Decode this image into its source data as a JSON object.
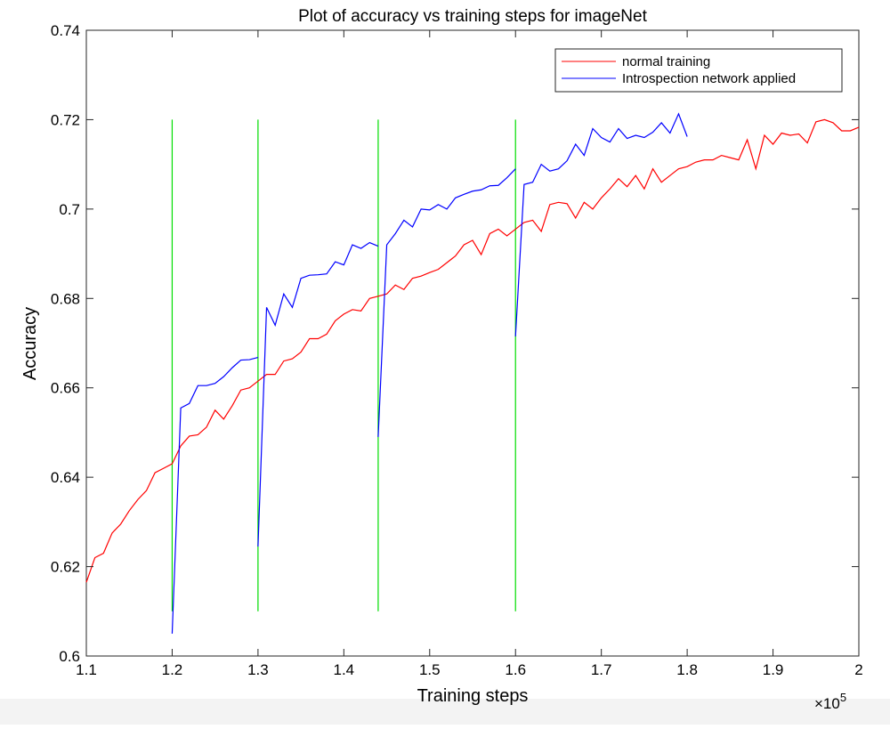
{
  "chart_data": {
    "type": "line",
    "title": "Plot of accuracy vs training steps for imageNet",
    "xlabel": "Training steps",
    "ylabel": "Accuracy",
    "x_multiplier_label": "×10",
    "x_multiplier_exponent": "5",
    "xlim": [
      1.1,
      2.0
    ],
    "ylim": [
      0.6,
      0.74
    ],
    "xticks": [
      1.1,
      1.2,
      1.3,
      1.4,
      1.5,
      1.6,
      1.7,
      1.8,
      1.9,
      2.0
    ],
    "xtick_labels": [
      "1.1",
      "1.2",
      "1.3",
      "1.4",
      "1.5",
      "1.6",
      "1.7",
      "1.8",
      "1.9",
      "2"
    ],
    "yticks": [
      0.6,
      0.62,
      0.64,
      0.66,
      0.68,
      0.7,
      0.72,
      0.74
    ],
    "ytick_labels": [
      "0.6",
      "0.62",
      "0.64",
      "0.66",
      "0.68",
      "0.7",
      "0.72",
      "0.74"
    ],
    "grid": false,
    "legend_position": "top-right",
    "series": [
      {
        "name": "normal training",
        "color": "#ff0000",
        "x": [
          1.1,
          1.11,
          1.12,
          1.13,
          1.14,
          1.15,
          1.16,
          1.17,
          1.18,
          1.19,
          1.2,
          1.21,
          1.22,
          1.23,
          1.24,
          1.25,
          1.26,
          1.27,
          1.28,
          1.29,
          1.3,
          1.31,
          1.32,
          1.33,
          1.34,
          1.35,
          1.36,
          1.37,
          1.38,
          1.39,
          1.4,
          1.41,
          1.42,
          1.43,
          1.44,
          1.45,
          1.46,
          1.47,
          1.48,
          1.49,
          1.5,
          1.51,
          1.52,
          1.53,
          1.54,
          1.55,
          1.56,
          1.57,
          1.58,
          1.59,
          1.6,
          1.61,
          1.62,
          1.63,
          1.64,
          1.65,
          1.66,
          1.67,
          1.68,
          1.69,
          1.7,
          1.71,
          1.72,
          1.73,
          1.74,
          1.75,
          1.76,
          1.77,
          1.78,
          1.79,
          1.8,
          1.81,
          1.82,
          1.83,
          1.84,
          1.85,
          1.86,
          1.87,
          1.88,
          1.89,
          1.9,
          1.91,
          1.92,
          1.93,
          1.94,
          1.95,
          1.96,
          1.97,
          1.98,
          1.99,
          2.0
        ],
        "y": [
          0.6165,
          0.622,
          0.623,
          0.6275,
          0.6295,
          0.6325,
          0.635,
          0.637,
          0.641,
          0.642,
          0.643,
          0.647,
          0.6492,
          0.6495,
          0.6512,
          0.655,
          0.653,
          0.656,
          0.6595,
          0.66,
          0.6615,
          0.663,
          0.663,
          0.666,
          0.6665,
          0.668,
          0.671,
          0.671,
          0.672,
          0.675,
          0.6765,
          0.6775,
          0.6772,
          0.68,
          0.6805,
          0.681,
          0.683,
          0.682,
          0.6845,
          0.685,
          0.6858,
          0.6865,
          0.688,
          0.6895,
          0.692,
          0.693,
          0.6898,
          0.6945,
          0.6955,
          0.694,
          0.6955,
          0.697,
          0.6975,
          0.695,
          0.701,
          0.7015,
          0.7012,
          0.698,
          0.7015,
          0.7,
          0.7025,
          0.7045,
          0.7068,
          0.705,
          0.7075,
          0.7045,
          0.709,
          0.706,
          0.7075,
          0.709,
          0.7095,
          0.7105,
          0.711,
          0.711,
          0.712,
          0.7115,
          0.711,
          0.7155,
          0.709,
          0.7165,
          0.7145,
          0.717,
          0.7165,
          0.7168,
          0.7148,
          0.7195,
          0.72,
          0.7193,
          0.7175,
          0.7175,
          0.7183
        ]
      },
      {
        "name": "Introspection network applied",
        "color": "#0000ff",
        "segments": [
          {
            "x": [
              1.2,
              1.21,
              1.22,
              1.23,
              1.24,
              1.25,
              1.26,
              1.27,
              1.28,
              1.29,
              1.3
            ],
            "y": [
              0.605,
              0.6555,
              0.6565,
              0.6605,
              0.6605,
              0.661,
              0.6625,
              0.6645,
              0.6662,
              0.6663,
              0.6668
            ]
          },
          {
            "x": [
              1.3,
              1.31,
              1.32,
              1.33,
              1.34,
              1.35,
              1.36,
              1.37,
              1.38,
              1.39,
              1.4,
              1.41,
              1.42,
              1.43,
              1.44
            ],
            "y": [
              0.6245,
              0.678,
              0.674,
              0.681,
              0.678,
              0.6845,
              0.6852,
              0.6853,
              0.6855,
              0.6882,
              0.6875,
              0.692,
              0.6912,
              0.6925,
              0.6917
            ]
          },
          {
            "x": [
              1.44,
              1.45,
              1.46,
              1.47,
              1.48,
              1.49,
              1.5,
              1.51,
              1.52,
              1.53,
              1.54,
              1.55,
              1.56,
              1.57,
              1.58,
              1.59,
              1.6
            ],
            "y": [
              0.649,
              0.692,
              0.6945,
              0.6975,
              0.696,
              0.7,
              0.6998,
              0.701,
              0.7,
              0.7025,
              0.7033,
              0.704,
              0.7043,
              0.7052,
              0.7053,
              0.707,
              0.709
            ]
          },
          {
            "x": [
              1.6,
              1.61,
              1.62,
              1.63,
              1.64,
              1.65,
              1.66,
              1.67,
              1.68,
              1.69,
              1.7,
              1.71,
              1.72,
              1.73,
              1.74,
              1.75,
              1.76,
              1.77,
              1.78,
              1.79,
              1.8
            ],
            "y": [
              0.6715,
              0.7055,
              0.706,
              0.71,
              0.7085,
              0.709,
              0.7108,
              0.7145,
              0.712,
              0.718,
              0.716,
              0.715,
              0.718,
              0.7158,
              0.7165,
              0.716,
              0.7172,
              0.7193,
              0.717,
              0.7213,
              0.7162
            ]
          }
        ]
      }
    ],
    "vertical_markers": {
      "color": "#00dd00",
      "x": [
        1.2,
        1.3,
        1.44,
        1.6
      ],
      "y_range": [
        0.61,
        0.72
      ]
    }
  }
}
